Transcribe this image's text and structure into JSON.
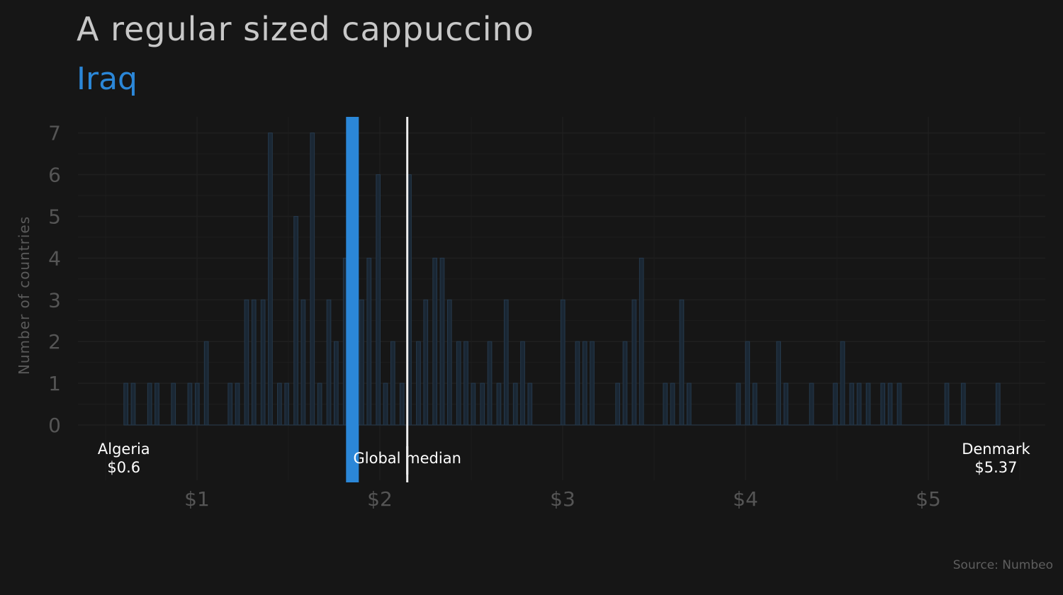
{
  "chart_data": {
    "type": "bar",
    "title": "A regular sized cappuccino",
    "subtitle": "Iraq",
    "ylabel": "Number of countries",
    "xlabel": "",
    "source": "Source: Numbeo",
    "x_ticks": [
      {
        "value": 1,
        "label": "$1"
      },
      {
        "value": 2,
        "label": "$2"
      },
      {
        "value": 3,
        "label": "$3"
      },
      {
        "value": 4,
        "label": "$4"
      },
      {
        "value": 5,
        "label": "$5"
      }
    ],
    "y_ticks": [
      0,
      1,
      2,
      3,
      4,
      5,
      6,
      7
    ],
    "xlim": [
      0.4,
      5.6
    ],
    "ylim": [
      0,
      7.4
    ],
    "bin_width": 0.022,
    "bins": [
      {
        "x": 0.6,
        "count": 1
      },
      {
        "x": 0.64,
        "count": 1
      },
      {
        "x": 0.73,
        "count": 1
      },
      {
        "x": 0.77,
        "count": 1
      },
      {
        "x": 0.86,
        "count": 1
      },
      {
        "x": 0.95,
        "count": 1
      },
      {
        "x": 0.99,
        "count": 1
      },
      {
        "x": 1.04,
        "count": 2
      },
      {
        "x": 1.17,
        "count": 1
      },
      {
        "x": 1.21,
        "count": 1
      },
      {
        "x": 1.26,
        "count": 3
      },
      {
        "x": 1.3,
        "count": 3
      },
      {
        "x": 1.35,
        "count": 3
      },
      {
        "x": 1.39,
        "count": 7
      },
      {
        "x": 1.44,
        "count": 1
      },
      {
        "x": 1.48,
        "count": 1
      },
      {
        "x": 1.53,
        "count": 5
      },
      {
        "x": 1.57,
        "count": 3
      },
      {
        "x": 1.62,
        "count": 7
      },
      {
        "x": 1.66,
        "count": 1
      },
      {
        "x": 1.71,
        "count": 3
      },
      {
        "x": 1.75,
        "count": 2
      },
      {
        "x": 1.8,
        "count": 4
      },
      {
        "x": 1.84,
        "count": 3
      },
      {
        "x": 1.89,
        "count": 3
      },
      {
        "x": 1.93,
        "count": 4
      },
      {
        "x": 1.98,
        "count": 6
      },
      {
        "x": 2.02,
        "count": 1
      },
      {
        "x": 2.06,
        "count": 2
      },
      {
        "x": 2.11,
        "count": 1
      },
      {
        "x": 2.15,
        "count": 6
      },
      {
        "x": 2.2,
        "count": 2
      },
      {
        "x": 2.24,
        "count": 3
      },
      {
        "x": 2.29,
        "count": 4
      },
      {
        "x": 2.33,
        "count": 4
      },
      {
        "x": 2.37,
        "count": 3
      },
      {
        "x": 2.42,
        "count": 2
      },
      {
        "x": 2.46,
        "count": 2
      },
      {
        "x": 2.5,
        "count": 1
      },
      {
        "x": 2.55,
        "count": 1
      },
      {
        "x": 2.59,
        "count": 2
      },
      {
        "x": 2.64,
        "count": 1
      },
      {
        "x": 2.68,
        "count": 3
      },
      {
        "x": 2.73,
        "count": 1
      },
      {
        "x": 2.77,
        "count": 2
      },
      {
        "x": 2.81,
        "count": 1
      },
      {
        "x": 2.99,
        "count": 3
      },
      {
        "x": 3.07,
        "count": 2
      },
      {
        "x": 3.11,
        "count": 2
      },
      {
        "x": 3.15,
        "count": 2
      },
      {
        "x": 3.29,
        "count": 1
      },
      {
        "x": 3.33,
        "count": 2
      },
      {
        "x": 3.38,
        "count": 3
      },
      {
        "x": 3.42,
        "count": 4
      },
      {
        "x": 3.55,
        "count": 1
      },
      {
        "x": 3.59,
        "count": 1
      },
      {
        "x": 3.64,
        "count": 3
      },
      {
        "x": 3.68,
        "count": 1
      },
      {
        "x": 3.95,
        "count": 1
      },
      {
        "x": 4.0,
        "count": 2
      },
      {
        "x": 4.04,
        "count": 1
      },
      {
        "x": 4.17,
        "count": 2
      },
      {
        "x": 4.21,
        "count": 1
      },
      {
        "x": 4.35,
        "count": 1
      },
      {
        "x": 4.48,
        "count": 1
      },
      {
        "x": 4.52,
        "count": 2
      },
      {
        "x": 4.57,
        "count": 1
      },
      {
        "x": 4.61,
        "count": 1
      },
      {
        "x": 4.66,
        "count": 1
      },
      {
        "x": 4.74,
        "count": 1
      },
      {
        "x": 4.78,
        "count": 1
      },
      {
        "x": 4.83,
        "count": 1
      },
      {
        "x": 5.09,
        "count": 1
      },
      {
        "x": 5.18,
        "count": 1
      },
      {
        "x": 5.37,
        "count": 1
      }
    ],
    "highlight": {
      "label": "Iraq",
      "x": 1.85
    },
    "median": {
      "label": "Global median",
      "x": 2.15
    },
    "annotations": [
      {
        "name": "Algeria",
        "value_label": "$0.6",
        "x": 0.6
      },
      {
        "name": "Denmark",
        "value_label": "$5.37",
        "x": 5.37
      }
    ],
    "colors": {
      "background": "#161616",
      "bar_fill": "#1a2734",
      "bar_stroke": "#25394c",
      "highlight": "#2b87d8",
      "median": "#eeeeee",
      "grid": "#1f1f1f",
      "tick_text": "#555555",
      "annotation_text": "#ffffff"
    }
  }
}
